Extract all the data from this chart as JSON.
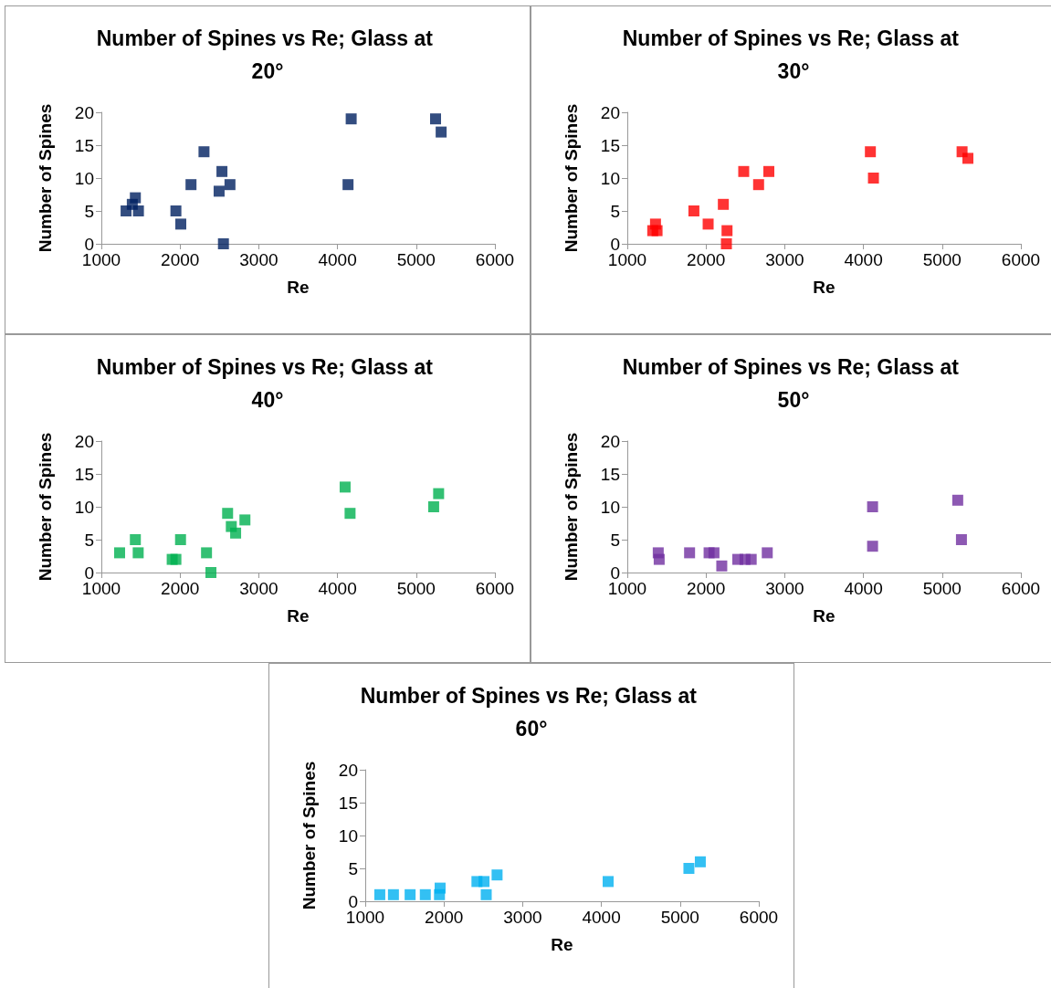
{
  "chart_data": [
    {
      "type": "scatter",
      "title": "Number of Spines vs Re; Glass at 20°",
      "xlabel": "Re",
      "ylabel": "Number of Spines",
      "color": "#002060",
      "marker": "square",
      "grid": false,
      "xlim": [
        1000,
        6000
      ],
      "xticks": [
        1000,
        2000,
        3000,
        4000,
        5000,
        6000
      ],
      "ylim": [
        0,
        20
      ],
      "yticks": [
        0,
        5,
        10,
        15,
        20
      ],
      "x": [
        1314,
        1393,
        1432,
        1471,
        1947,
        2009,
        2139,
        2304,
        2496,
        2532,
        2634,
        2551,
        4134,
        4174,
        5246,
        5317
      ],
      "values": [
        5,
        6,
        7,
        5,
        5,
        3,
        9,
        14,
        8,
        11,
        9,
        0,
        9,
        19,
        19,
        17
      ]
    },
    {
      "type": "scatter",
      "title": "Number of Spines vs Re; Glass at 30°",
      "xlabel": "Re",
      "ylabel": "Number of Spines",
      "color": "#ff0000",
      "marker": "square",
      "grid": false,
      "xlim": [
        1000,
        6000
      ],
      "xticks": [
        1000,
        2000,
        3000,
        4000,
        5000,
        6000
      ],
      "ylim": [
        0,
        20
      ],
      "yticks": [
        0,
        5,
        10,
        15,
        20
      ],
      "x": [
        1323,
        1358,
        1378,
        1846,
        2027,
        2220,
        2267,
        2259,
        2479,
        2668,
        2798,
        4088,
        4127,
        5253,
        5327
      ],
      "values": [
        2,
        3,
        2,
        5,
        3,
        6,
        2,
        0,
        11,
        9,
        11,
        14,
        10,
        14,
        13
      ]
    },
    {
      "type": "scatter",
      "title": "Number of Spines vs Re; Glass at 40°",
      "xlabel": "Re",
      "ylabel": "Number of Spines",
      "color": "#00b050",
      "marker": "square",
      "grid": false,
      "xlim": [
        1000,
        6000
      ],
      "xticks": [
        1000,
        2000,
        3000,
        4000,
        5000,
        6000
      ],
      "ylim": [
        0,
        20
      ],
      "yticks": [
        0,
        5,
        10,
        15,
        20
      ],
      "x": [
        1232,
        1432,
        1468,
        1900,
        1947,
        2006,
        2336,
        2392,
        2604,
        2651,
        2706,
        2824,
        4097,
        4160,
        5222,
        5285
      ],
      "values": [
        3,
        5,
        3,
        2,
        2,
        5,
        3,
        0,
        9,
        7,
        6,
        8,
        13,
        9,
        10,
        12
      ]
    },
    {
      "type": "scatter",
      "title": "Number of Spines vs Re; Glass at 50°",
      "xlabel": "Re",
      "ylabel": "Number of Spines",
      "color": "#7030a0",
      "marker": "square",
      "grid": false,
      "xlim": [
        1000,
        6000
      ],
      "xticks": [
        1000,
        2000,
        3000,
        4000,
        5000,
        6000
      ],
      "ylim": [
        0,
        20
      ],
      "yticks": [
        0,
        5,
        10,
        15,
        20
      ],
      "x": [
        1393,
        1405,
        1791,
        2039,
        2101,
        2200,
        2404,
        2495,
        2574,
        2778,
        4116,
        4116,
        5198,
        5245
      ],
      "values": [
        3,
        2,
        3,
        3,
        3,
        1,
        2,
        2,
        2,
        3,
        10,
        4,
        11,
        5
      ]
    },
    {
      "type": "scatter",
      "title": "Number of Spines vs Re; Glass at 60°",
      "xlabel": "Re",
      "ylabel": "Number of Spines",
      "color": "#00b0f0",
      "marker": "square",
      "grid": false,
      "xlim": [
        1000,
        6000
      ],
      "xticks": [
        1000,
        2000,
        3000,
        4000,
        5000,
        6000
      ],
      "ylim": [
        0,
        20
      ],
      "yticks": [
        0,
        5,
        10,
        15,
        20
      ],
      "x": [
        1185,
        1358,
        1570,
        1763,
        1943,
        1951,
        2419,
        2509,
        2537,
        2675,
        4086,
        5112,
        5257
      ],
      "values": [
        1,
        1,
        1,
        1,
        1,
        2,
        3,
        3,
        1,
        4,
        3,
        5,
        6
      ]
    }
  ]
}
